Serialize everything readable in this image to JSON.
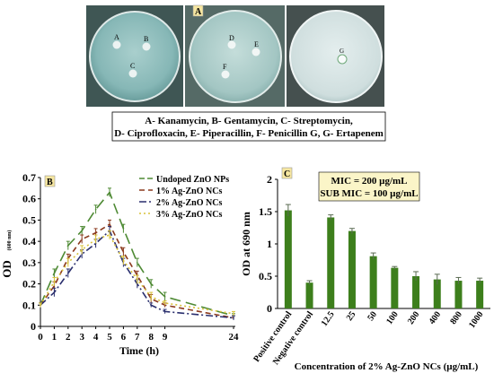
{
  "panel_a": {
    "letter": "A",
    "plates": [
      {
        "labels": [
          "A",
          "B",
          "C"
        ]
      },
      {
        "labels": [
          "D",
          "E",
          "F"
        ]
      },
      {
        "labels": [
          "G"
        ]
      }
    ],
    "caption_line1": "A- Kanamycin, B- Gentamycin, C- Streptomycin,",
    "caption_line2": "D- Ciprofloxacin, E- Piperacillin, F- Penicillin G, G- Ertapenem"
  },
  "colors": {
    "undoped": "#4e8a34",
    "ag1": "#8b3a1e",
    "ag2": "#2a2f6e",
    "ag3": "#d8c23a",
    "bar": "#3d7f1c",
    "panel_tag": "#f6e6a0",
    "mic_box": "#fbf5c8"
  },
  "chart_data": [
    {
      "type": "line",
      "panel_letter": "B",
      "xlabel": "Time (h)",
      "ylabel": "OD",
      "ylabel_sub": "(600 nm)",
      "x": [
        0,
        1,
        2,
        3,
        4,
        5,
        6,
        7,
        8,
        9,
        24
      ],
      "x_ticks": [
        "0",
        "1",
        "2",
        "3",
        "4",
        "5",
        "6",
        "7",
        "8",
        "9",
        "24"
      ],
      "ylim": [
        0,
        0.7
      ],
      "y_ticks": [
        "0",
        "0.1",
        "0.2",
        "0.3",
        "0.4",
        "0.5",
        "0.6",
        "0.7"
      ],
      "legend_position": "top-right",
      "series": [
        {
          "name": "Undoped ZnO NPs",
          "values": [
            0.1,
            0.25,
            0.38,
            0.45,
            0.55,
            0.63,
            0.46,
            0.3,
            0.2,
            0.14,
            0.05
          ],
          "error": [
            0.01,
            0.02,
            0.02,
            0.02,
            0.02,
            0.02,
            0.02,
            0.02,
            0.02,
            0.02,
            0.01
          ],
          "dash": "12,6"
        },
        {
          "name": "1% Ag-ZnO NCs",
          "values": [
            0.1,
            0.19,
            0.32,
            0.41,
            0.44,
            0.48,
            0.35,
            0.24,
            0.13,
            0.1,
            0.04
          ],
          "error": [
            0.01,
            0.02,
            0.02,
            0.02,
            0.02,
            0.02,
            0.02,
            0.02,
            0.02,
            0.01,
            0.01
          ],
          "dash": "6,4"
        },
        {
          "name": "2% Ag-ZnO NCs",
          "values": [
            0.1,
            0.16,
            0.25,
            0.34,
            0.39,
            0.45,
            0.3,
            0.2,
            0.1,
            0.07,
            0.04
          ],
          "error": [
            0.01,
            0.02,
            0.02,
            0.02,
            0.02,
            0.02,
            0.02,
            0.02,
            0.01,
            0.01,
            0.01
          ],
          "dash": "8,3,2,3"
        },
        {
          "name": "3% Ag-ZnO NCs",
          "values": [
            0.1,
            0.21,
            0.3,
            0.36,
            0.41,
            0.43,
            0.31,
            0.22,
            0.14,
            0.11,
            0.06
          ],
          "error": [
            0.01,
            0.02,
            0.02,
            0.02,
            0.02,
            0.02,
            0.02,
            0.02,
            0.02,
            0.01,
            0.01
          ],
          "dash": "2,3"
        }
      ]
    },
    {
      "type": "bar",
      "panel_letter": "C",
      "xlabel": "Concentration of 2% Ag-ZnO NCs  (µg/mL)",
      "ylabel": "OD at 690 nm",
      "ylim": [
        0,
        2
      ],
      "y_ticks": [
        "0",
        "0.5",
        "1",
        "1.5",
        "2"
      ],
      "categories": [
        "Positive control",
        "Negative control",
        "12.5",
        "25",
        "50",
        "100",
        "200",
        "400",
        "800",
        "1000"
      ],
      "values": [
        1.52,
        0.4,
        1.41,
        1.2,
        0.81,
        0.63,
        0.5,
        0.45,
        0.43,
        0.43
      ],
      "error": [
        0.09,
        0.03,
        0.04,
        0.04,
        0.05,
        0.02,
        0.07,
        0.08,
        0.05,
        0.04
      ],
      "annotation_line1": "MIC = 200 µg/mL",
      "annotation_line2": "SUB MIC = 100 µg/mL"
    }
  ]
}
